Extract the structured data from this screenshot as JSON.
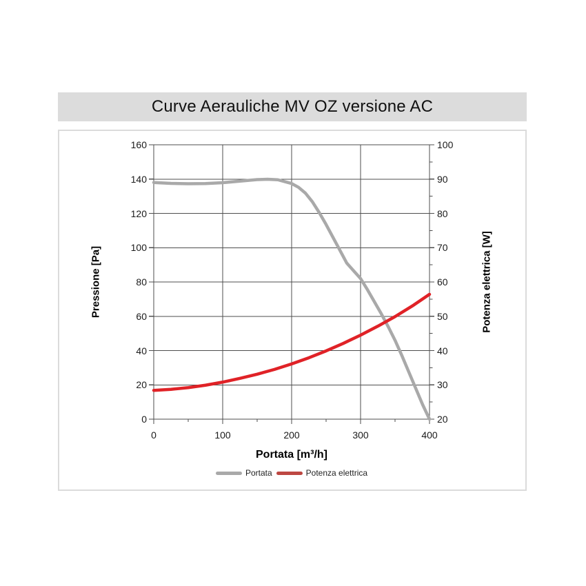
{
  "page": {
    "background": "#ffffff"
  },
  "header": {
    "title": "Curve Aerauliche MV OZ versione AC",
    "background": "#dcdcdc"
  },
  "chart_data": {
    "type": "line",
    "title": "Curve Aerauliche MV OZ versione AC",
    "xlabel": "Portata [m³/h]",
    "ylabel_left": "Pressione [Pa]",
    "ylabel_right": "Potenza elettrica [W]",
    "xlim": [
      0,
      400
    ],
    "ylim_left": [
      0,
      160
    ],
    "ylim_right": [
      20,
      100
    ],
    "grid": true,
    "grid_color": "#4d4d4d",
    "x_ticks": [
      0,
      100,
      200,
      300,
      400
    ],
    "x_minor_ticks": [
      50,
      150,
      250,
      350
    ],
    "y_left_ticks": [
      160,
      140,
      120,
      100,
      80,
      60,
      40,
      20,
      0
    ],
    "y_right_ticks": [
      100,
      90,
      80,
      70,
      60,
      50,
      40,
      30,
      20
    ],
    "y_right_minor_ticks": [
      95,
      85,
      75,
      65,
      55,
      45,
      35,
      25
    ],
    "legend_position": "bottom",
    "series": [
      {
        "name": "Portata",
        "axis": "left",
        "unit": "Pa",
        "color": "#a9a9a9",
        "legend_color": "#a9a9a9",
        "x": [
          0,
          25,
          50,
          75,
          100,
          125,
          150,
          165,
          180,
          200,
          210,
          220,
          230,
          240,
          250,
          260,
          270,
          280,
          290,
          300,
          310,
          320,
          330,
          340,
          350,
          360,
          370,
          380,
          390,
          400
        ],
        "y": [
          138,
          137.5,
          137.3,
          137.4,
          137.9,
          138.8,
          139.7,
          139.9,
          139.6,
          137.4,
          135.2,
          131.8,
          126.8,
          120.5,
          113.5,
          106,
          98.5,
          91,
          86.5,
          82,
          75.5,
          68.5,
          61.5,
          54,
          46,
          37,
          27.5,
          18,
          8.5,
          0
        ]
      },
      {
        "name": "Potenza elettrica",
        "axis": "right",
        "unit": "W",
        "color": "#e02227",
        "legend_color": "#bd4742",
        "x": [
          0,
          25,
          50,
          75,
          100,
          125,
          150,
          175,
          200,
          225,
          250,
          275,
          300,
          325,
          350,
          375,
          400
        ],
        "y": [
          28.4,
          28.7,
          29.2,
          29.9,
          30.8,
          31.9,
          33.1,
          34.5,
          36.1,
          37.9,
          39.9,
          42.1,
          44.5,
          47.1,
          49.9,
          53.0,
          56.4
        ]
      }
    ]
  }
}
